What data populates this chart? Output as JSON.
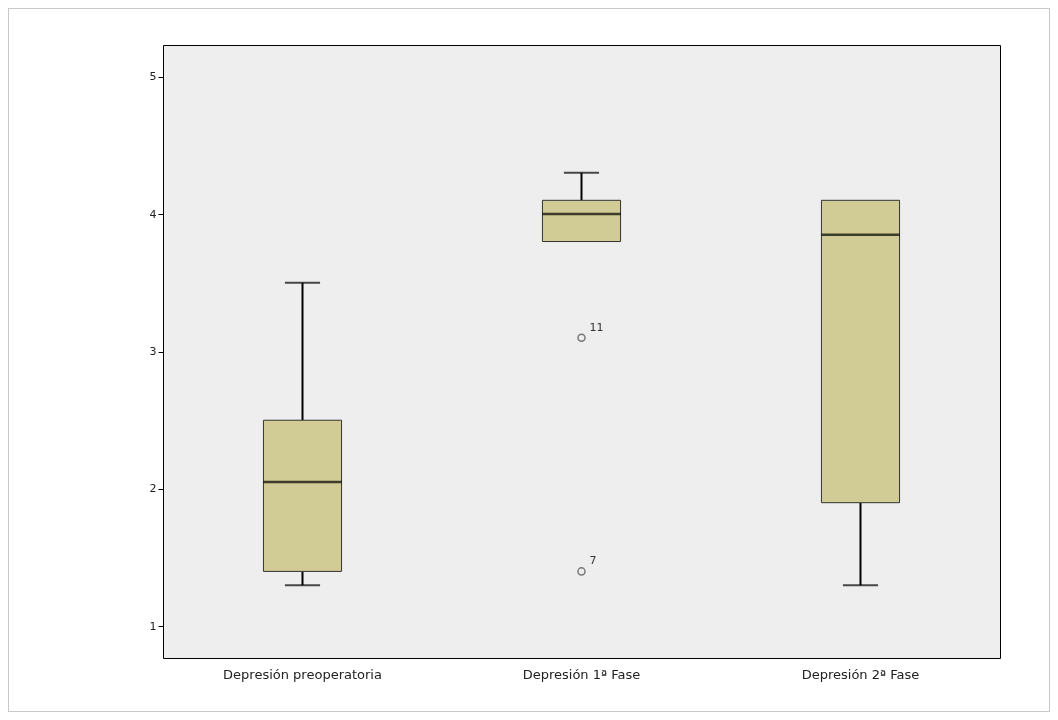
{
  "chart_data": {
    "type": "box",
    "categories": [
      "Depresión preoperatoria",
      "Depresión 1ª Fase",
      "Depresión 2ª Fase"
    ],
    "boxes": [
      {
        "low": 1.3,
        "q1": 1.4,
        "median": 2.05,
        "q3": 2.5,
        "high": 3.5
      },
      {
        "low": 3.8,
        "q1": 3.8,
        "median": 4.0,
        "q3": 4.1,
        "high": 4.3,
        "outliers": [
          3.1,
          1.4
        ]
      },
      {
        "low": 1.3,
        "q1": 1.9,
        "median": 3.85,
        "q3": 4.1,
        "high": 4.1
      }
    ],
    "color": "#d1cc95",
    "ylim": [
      0.77,
      5.23
    ],
    "yticks": [
      1,
      2,
      3,
      4,
      5
    ],
    "annotations": [
      "11",
      "7"
    ]
  }
}
